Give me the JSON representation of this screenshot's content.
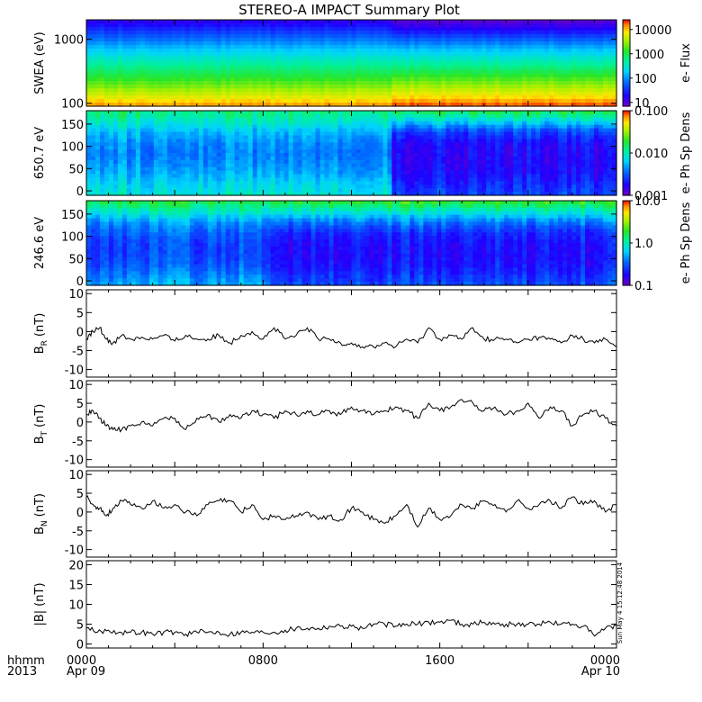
{
  "title": "STEREO-A IMPACT Summary Plot",
  "footer": {
    "time_unit": "hhmm",
    "year": "2013",
    "x_ticks": [
      {
        "hours": 0,
        "label": "0000",
        "sublabel": "Apr 09"
      },
      {
        "hours": 8,
        "label": "0800",
        "sublabel": ""
      },
      {
        "hours": 16,
        "label": "1600",
        "sublabel": ""
      },
      {
        "hours": 24,
        "label": "0000",
        "sublabel": "Apr 10"
      }
    ]
  },
  "timestamp": "Sun May  4 15:12:48 2014",
  "chart_data": [
    {
      "type": "heatmap",
      "ylabel": "SWEA (eV)",
      "yscale": "log",
      "ylim": [
        90,
        2000
      ],
      "yticks": [
        100,
        1000
      ],
      "ytick_labels": [
        "100",
        "1000"
      ],
      "colorbar": {
        "label": "e- Flux",
        "scale": "log",
        "range": [
          7,
          25000
        ],
        "ticks": [
          10,
          100,
          1000,
          10000
        ],
        "tick_labels": [
          "10",
          "100",
          "1000",
          "10000"
        ]
      },
      "description_profile": "high flux (yellow-orange) at low energy, decreasing to blue/purple at ~2000 eV; slightly higher flux after ~14:00",
      "profile_before_1400": [
        0.93,
        0.82,
        0.72,
        0.63,
        0.55,
        0.47,
        0.38,
        0.28,
        0.18,
        0.08
      ],
      "profile_after_1400": [
        0.98,
        0.86,
        0.76,
        0.66,
        0.56,
        0.47,
        0.37,
        0.25,
        0.12,
        0.02
      ],
      "change_hour": 13.9
    },
    {
      "type": "heatmap",
      "ylabel": "650.7 eV",
      "ylim": [
        -10,
        180
      ],
      "yticks": [
        0,
        50,
        100,
        150
      ],
      "ytick_labels": [
        "0",
        "50",
        "100",
        "150"
      ],
      "colorbar": {
        "label": "e- Ph Sp Dens",
        "scale": "log",
        "range": [
          0.001,
          0.1
        ],
        "ticks": [
          0.001,
          0.01,
          0.1
        ],
        "tick_labels": [
          "0.001",
          "0.010",
          "0.100"
        ]
      },
      "change_hour": 13.9,
      "profile_before_1400": [
        0.46,
        0.42,
        0.36,
        0.32,
        0.3,
        0.32,
        0.38,
        0.48,
        0.56
      ],
      "profile_after_1400": [
        0.22,
        0.18,
        0.14,
        0.12,
        0.12,
        0.14,
        0.22,
        0.42,
        0.62
      ]
    },
    {
      "type": "heatmap",
      "ylabel": "246.6 eV",
      "ylim": [
        -10,
        180
      ],
      "yticks": [
        0,
        50,
        100,
        150
      ],
      "ytick_labels": [
        "0",
        "50",
        "100",
        "150"
      ],
      "colorbar": {
        "label": "e- Ph Sp Dens",
        "scale": "log",
        "range": [
          0.1,
          10.0
        ],
        "ticks": [
          0.1,
          1.0,
          10.0
        ],
        "tick_labels": [
          "0.1",
          "1.0",
          "10.0"
        ]
      },
      "change_hour": 8.4,
      "profile_before_1400": [
        0.36,
        0.3,
        0.24,
        0.22,
        0.22,
        0.26,
        0.34,
        0.48,
        0.62
      ],
      "profile_after_1400": [
        0.24,
        0.19,
        0.15,
        0.14,
        0.15,
        0.19,
        0.3,
        0.48,
        0.66
      ]
    },
    {
      "type": "line",
      "ylabel_main": "B",
      "ylabel_sub": "R",
      "ylabel_unit": "(nT)",
      "ylim": [
        -12,
        11
      ],
      "yticks": [
        -10,
        -5,
        0,
        5,
        10
      ],
      "ytick_labels": [
        "-10",
        "-5",
        "0",
        "5",
        "10"
      ],
      "x_hours": [
        0,
        0.3,
        0.6,
        0.9,
        1.2,
        1.6,
        2.0,
        2.5,
        3.0,
        3.5,
        4.0,
        4.5,
        5.0,
        5.5,
        6.0,
        6.5,
        7.0,
        7.5,
        8.0,
        8.5,
        9.0,
        9.5,
        10.0,
        10.5,
        11.0,
        11.5,
        12.0,
        12.5,
        13.0,
        13.5,
        14.0,
        14.5,
        15.0,
        15.5,
        16.0,
        16.5,
        17.0,
        17.5,
        18.0,
        18.5,
        19.0,
        19.5,
        20.0,
        20.5,
        21.0,
        21.5,
        22.0,
        22.5,
        23.0,
        23.5,
        24.0
      ],
      "values": [
        -2,
        0,
        1,
        -2,
        -3,
        -1,
        -2,
        -1.5,
        -2,
        -1,
        -2.5,
        -1,
        -2,
        -2,
        -1,
        -3,
        -1,
        0,
        -2,
        1,
        -2,
        -1,
        1,
        -2,
        -2,
        -3,
        -3,
        -4,
        -4,
        -3,
        -4,
        -2,
        -3,
        1,
        -2,
        -1,
        -2,
        1,
        -2,
        -2,
        -2,
        -3,
        -2,
        -1.5,
        -2,
        -3,
        -1,
        -2,
        -3,
        -2,
        -4
      ]
    },
    {
      "type": "line",
      "ylabel_main": "B",
      "ylabel_sub": "T",
      "ylabel_unit": "(nT)",
      "ylim": [
        -12,
        11
      ],
      "yticks": [
        -10,
        -5,
        0,
        5,
        10
      ],
      "ytick_labels": [
        "-10",
        "-5",
        "0",
        "5",
        "10"
      ],
      "x_hours": [
        0,
        0.3,
        0.6,
        0.9,
        1.2,
        1.6,
        2.0,
        2.5,
        3.0,
        3.5,
        4.0,
        4.5,
        5.0,
        5.5,
        6.0,
        6.5,
        7.0,
        7.5,
        8.0,
        8.5,
        9.0,
        9.5,
        10.0,
        10.5,
        11.0,
        11.5,
        12.0,
        12.5,
        13.0,
        13.5,
        14.0,
        14.5,
        15.0,
        15.5,
        16.0,
        16.5,
        17.0,
        17.5,
        18.0,
        18.5,
        19.0,
        19.5,
        20.0,
        20.5,
        21.0,
        21.5,
        22.0,
        22.5,
        23.0,
        23.5,
        24.0
      ],
      "values": [
        2,
        3,
        1,
        -1,
        -2,
        -2,
        -1,
        0,
        -1,
        1,
        1,
        -2,
        1,
        2,
        0,
        2,
        1,
        3,
        2,
        1,
        3,
        2,
        3,
        2,
        3,
        2,
        4,
        3,
        2,
        3,
        4,
        3,
        1,
        5,
        3,
        4,
        6,
        5,
        3,
        4,
        2,
        3,
        5,
        1,
        4,
        3,
        -1,
        2,
        3,
        1,
        -1
      ]
    },
    {
      "type": "line",
      "ylabel_main": "B",
      "ylabel_sub": "N",
      "ylabel_unit": "(nT)",
      "ylim": [
        -12,
        11
      ],
      "yticks": [
        -10,
        -5,
        0,
        5,
        10
      ],
      "ytick_labels": [
        "-10",
        "-5",
        "0",
        "5",
        "10"
      ],
      "x_hours": [
        0,
        0.3,
        0.6,
        0.9,
        1.2,
        1.6,
        2.0,
        2.5,
        3.0,
        3.5,
        4.0,
        4.5,
        5.0,
        5.5,
        6.0,
        6.5,
        7.0,
        7.5,
        8.0,
        8.5,
        9.0,
        9.5,
        10.0,
        10.5,
        11.0,
        11.5,
        12.0,
        12.5,
        13.0,
        13.5,
        14.0,
        14.5,
        15.0,
        15.5,
        16.0,
        16.5,
        17.0,
        17.5,
        18.0,
        18.5,
        19.0,
        19.5,
        20.0,
        20.5,
        21.0,
        21.5,
        22.0,
        22.5,
        23.0,
        23.5,
        24.0
      ],
      "values": [
        4,
        2,
        1,
        -1,
        1,
        3,
        2,
        1,
        3,
        1,
        2,
        0,
        -1,
        2,
        3,
        3,
        0,
        2,
        -2,
        -1,
        -2,
        -1,
        0,
        -2,
        -1,
        -2,
        1,
        0,
        -2,
        -3,
        -1,
        2,
        -4,
        1,
        -2,
        -1,
        2,
        1,
        3,
        2,
        0,
        3,
        1,
        2,
        3,
        1,
        4,
        2,
        3,
        0,
        2
      ]
    },
    {
      "type": "line",
      "ylabel_main": "|B|",
      "ylabel_sub": "",
      "ylabel_unit": "(nT)",
      "ylim": [
        -1,
        21
      ],
      "yticks": [
        0,
        5,
        10,
        15,
        20
      ],
      "ytick_labels": [
        "0",
        "5",
        "10",
        "15",
        "20"
      ],
      "x_hours": [
        0,
        0.5,
        1.0,
        1.5,
        2.0,
        2.5,
        3.0,
        3.5,
        4.0,
        4.5,
        5.0,
        5.5,
        6.0,
        6.5,
        7.0,
        7.5,
        8.0,
        8.5,
        9.0,
        9.5,
        10.0,
        10.5,
        11.0,
        11.5,
        12.0,
        12.5,
        13.0,
        13.5,
        14.0,
        14.5,
        15.0,
        15.5,
        16.0,
        16.5,
        17.0,
        17.5,
        18.0,
        18.5,
        19.0,
        19.5,
        20.0,
        20.5,
        21.0,
        21.5,
        22.0,
        22.5,
        23.0,
        23.5,
        24.0
      ],
      "values": [
        4,
        3,
        3.5,
        3,
        3,
        3,
        2.5,
        3,
        3,
        2.5,
        3,
        3,
        3,
        2.5,
        3,
        3,
        3,
        3,
        3.5,
        4,
        4,
        4,
        4.5,
        4.5,
        4.5,
        4,
        5,
        5,
        4.5,
        5,
        5,
        5.5,
        5.5,
        6,
        5,
        5,
        5.5,
        5,
        5,
        5,
        5,
        5,
        5.5,
        5,
        5,
        4.5,
        2,
        4,
        4.5
      ]
    }
  ]
}
